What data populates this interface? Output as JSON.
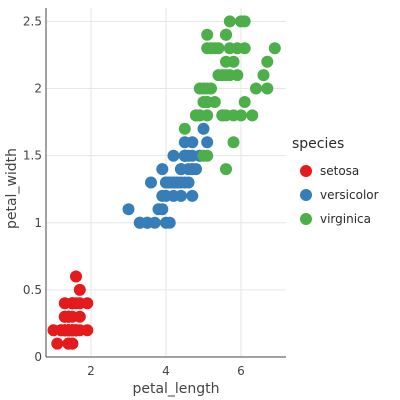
{
  "chart_data": {
    "type": "scatter",
    "xlabel": "petal_length",
    "ylabel": "petal_width",
    "xlim": [
      0.8,
      7.2
    ],
    "ylim": [
      0,
      2.6
    ],
    "x_ticks": [
      2,
      4,
      6
    ],
    "y_ticks": [
      0,
      0.5,
      1,
      1.5,
      2,
      2.5
    ],
    "grid": true,
    "legend": {
      "title": "species",
      "position": "right"
    },
    "series": [
      {
        "name": "setosa",
        "color": "#e41a1c",
        "points": [
          [
            1.4,
            0.2
          ],
          [
            1.4,
            0.2
          ],
          [
            1.3,
            0.2
          ],
          [
            1.5,
            0.2
          ],
          [
            1.4,
            0.2
          ],
          [
            1.7,
            0.4
          ],
          [
            1.4,
            0.3
          ],
          [
            1.5,
            0.2
          ],
          [
            1.4,
            0.2
          ],
          [
            1.5,
            0.1
          ],
          [
            1.5,
            0.2
          ],
          [
            1.6,
            0.2
          ],
          [
            1.4,
            0.1
          ],
          [
            1.1,
            0.1
          ],
          [
            1.2,
            0.2
          ],
          [
            1.5,
            0.4
          ],
          [
            1.3,
            0.4
          ],
          [
            1.4,
            0.3
          ],
          [
            1.7,
            0.3
          ],
          [
            1.5,
            0.3
          ],
          [
            1.7,
            0.2
          ],
          [
            1.5,
            0.4
          ],
          [
            1.0,
            0.2
          ],
          [
            1.7,
            0.5
          ],
          [
            1.9,
            0.2
          ],
          [
            1.6,
            0.2
          ],
          [
            1.6,
            0.4
          ],
          [
            1.5,
            0.2
          ],
          [
            1.4,
            0.2
          ],
          [
            1.6,
            0.2
          ],
          [
            1.6,
            0.2
          ],
          [
            1.5,
            0.4
          ],
          [
            1.5,
            0.1
          ],
          [
            1.4,
            0.2
          ],
          [
            1.5,
            0.2
          ],
          [
            1.2,
            0.2
          ],
          [
            1.3,
            0.2
          ],
          [
            1.4,
            0.1
          ],
          [
            1.3,
            0.2
          ],
          [
            1.5,
            0.2
          ],
          [
            1.3,
            0.3
          ],
          [
            1.3,
            0.3
          ],
          [
            1.3,
            0.2
          ],
          [
            1.6,
            0.6
          ],
          [
            1.9,
            0.4
          ],
          [
            1.4,
            0.3
          ],
          [
            1.6,
            0.2
          ],
          [
            1.4,
            0.2
          ],
          [
            1.5,
            0.2
          ],
          [
            1.4,
            0.2
          ]
        ]
      },
      {
        "name": "versicolor",
        "color": "#377eb8",
        "points": [
          [
            4.7,
            1.4
          ],
          [
            4.5,
            1.5
          ],
          [
            4.9,
            1.5
          ],
          [
            4.0,
            1.3
          ],
          [
            4.6,
            1.5
          ],
          [
            4.5,
            1.3
          ],
          [
            4.7,
            1.6
          ],
          [
            3.3,
            1.0
          ],
          [
            4.6,
            1.3
          ],
          [
            3.9,
            1.4
          ],
          [
            3.5,
            1.0
          ],
          [
            4.2,
            1.5
          ],
          [
            4.0,
            1.0
          ],
          [
            4.7,
            1.4
          ],
          [
            3.6,
            1.3
          ],
          [
            4.4,
            1.4
          ],
          [
            4.5,
            1.5
          ],
          [
            4.1,
            1.0
          ],
          [
            4.5,
            1.5
          ],
          [
            3.9,
            1.1
          ],
          [
            4.8,
            1.8
          ],
          [
            4.0,
            1.3
          ],
          [
            4.9,
            1.5
          ],
          [
            4.7,
            1.2
          ],
          [
            4.3,
            1.3
          ],
          [
            4.4,
            1.4
          ],
          [
            4.8,
            1.4
          ],
          [
            5.0,
            1.7
          ],
          [
            4.5,
            1.5
          ],
          [
            3.5,
            1.0
          ],
          [
            3.8,
            1.1
          ],
          [
            3.7,
            1.0
          ],
          [
            3.9,
            1.2
          ],
          [
            5.1,
            1.6
          ],
          [
            4.5,
            1.5
          ],
          [
            4.5,
            1.6
          ],
          [
            4.7,
            1.5
          ],
          [
            4.4,
            1.3
          ],
          [
            4.1,
            1.3
          ],
          [
            4.0,
            1.3
          ],
          [
            4.4,
            1.2
          ],
          [
            4.6,
            1.4
          ],
          [
            4.0,
            1.2
          ],
          [
            3.3,
            1.0
          ],
          [
            4.2,
            1.3
          ],
          [
            4.2,
            1.2
          ],
          [
            4.2,
            1.3
          ],
          [
            4.3,
            1.3
          ],
          [
            3.0,
            1.1
          ],
          [
            4.1,
            1.3
          ]
        ]
      },
      {
        "name": "virginica",
        "color": "#4daf4a",
        "points": [
          [
            6.0,
            2.5
          ],
          [
            5.1,
            1.9
          ],
          [
            5.9,
            2.1
          ],
          [
            5.6,
            1.8
          ],
          [
            5.8,
            2.2
          ],
          [
            6.6,
            2.1
          ],
          [
            4.5,
            1.7
          ],
          [
            6.3,
            1.8
          ],
          [
            5.8,
            1.8
          ],
          [
            6.1,
            2.5
          ],
          [
            5.1,
            2.0
          ],
          [
            5.3,
            1.9
          ],
          [
            5.5,
            2.1
          ],
          [
            5.0,
            2.0
          ],
          [
            5.1,
            2.4
          ],
          [
            5.3,
            2.3
          ],
          [
            5.5,
            1.8
          ],
          [
            6.7,
            2.2
          ],
          [
            6.9,
            2.3
          ],
          [
            5.0,
            1.5
          ],
          [
            5.7,
            2.3
          ],
          [
            4.9,
            2.0
          ],
          [
            6.7,
            2.0
          ],
          [
            4.9,
            1.8
          ],
          [
            5.7,
            2.1
          ],
          [
            6.0,
            1.8
          ],
          [
            4.8,
            1.8
          ],
          [
            4.9,
            1.8
          ],
          [
            5.6,
            2.1
          ],
          [
            5.8,
            1.6
          ],
          [
            6.1,
            1.9
          ],
          [
            6.4,
            2.0
          ],
          [
            5.6,
            2.2
          ],
          [
            5.1,
            1.5
          ],
          [
            5.6,
            1.4
          ],
          [
            6.1,
            2.3
          ],
          [
            5.6,
            2.4
          ],
          [
            5.5,
            1.8
          ],
          [
            4.8,
            1.8
          ],
          [
            5.4,
            2.1
          ],
          [
            5.6,
            2.4
          ],
          [
            5.1,
            2.3
          ],
          [
            5.1,
            1.9
          ],
          [
            5.9,
            2.3
          ],
          [
            5.7,
            2.5
          ],
          [
            5.2,
            2.3
          ],
          [
            5.0,
            1.9
          ],
          [
            5.2,
            2.0
          ],
          [
            5.4,
            2.3
          ],
          [
            5.1,
            1.8
          ]
        ]
      }
    ]
  }
}
